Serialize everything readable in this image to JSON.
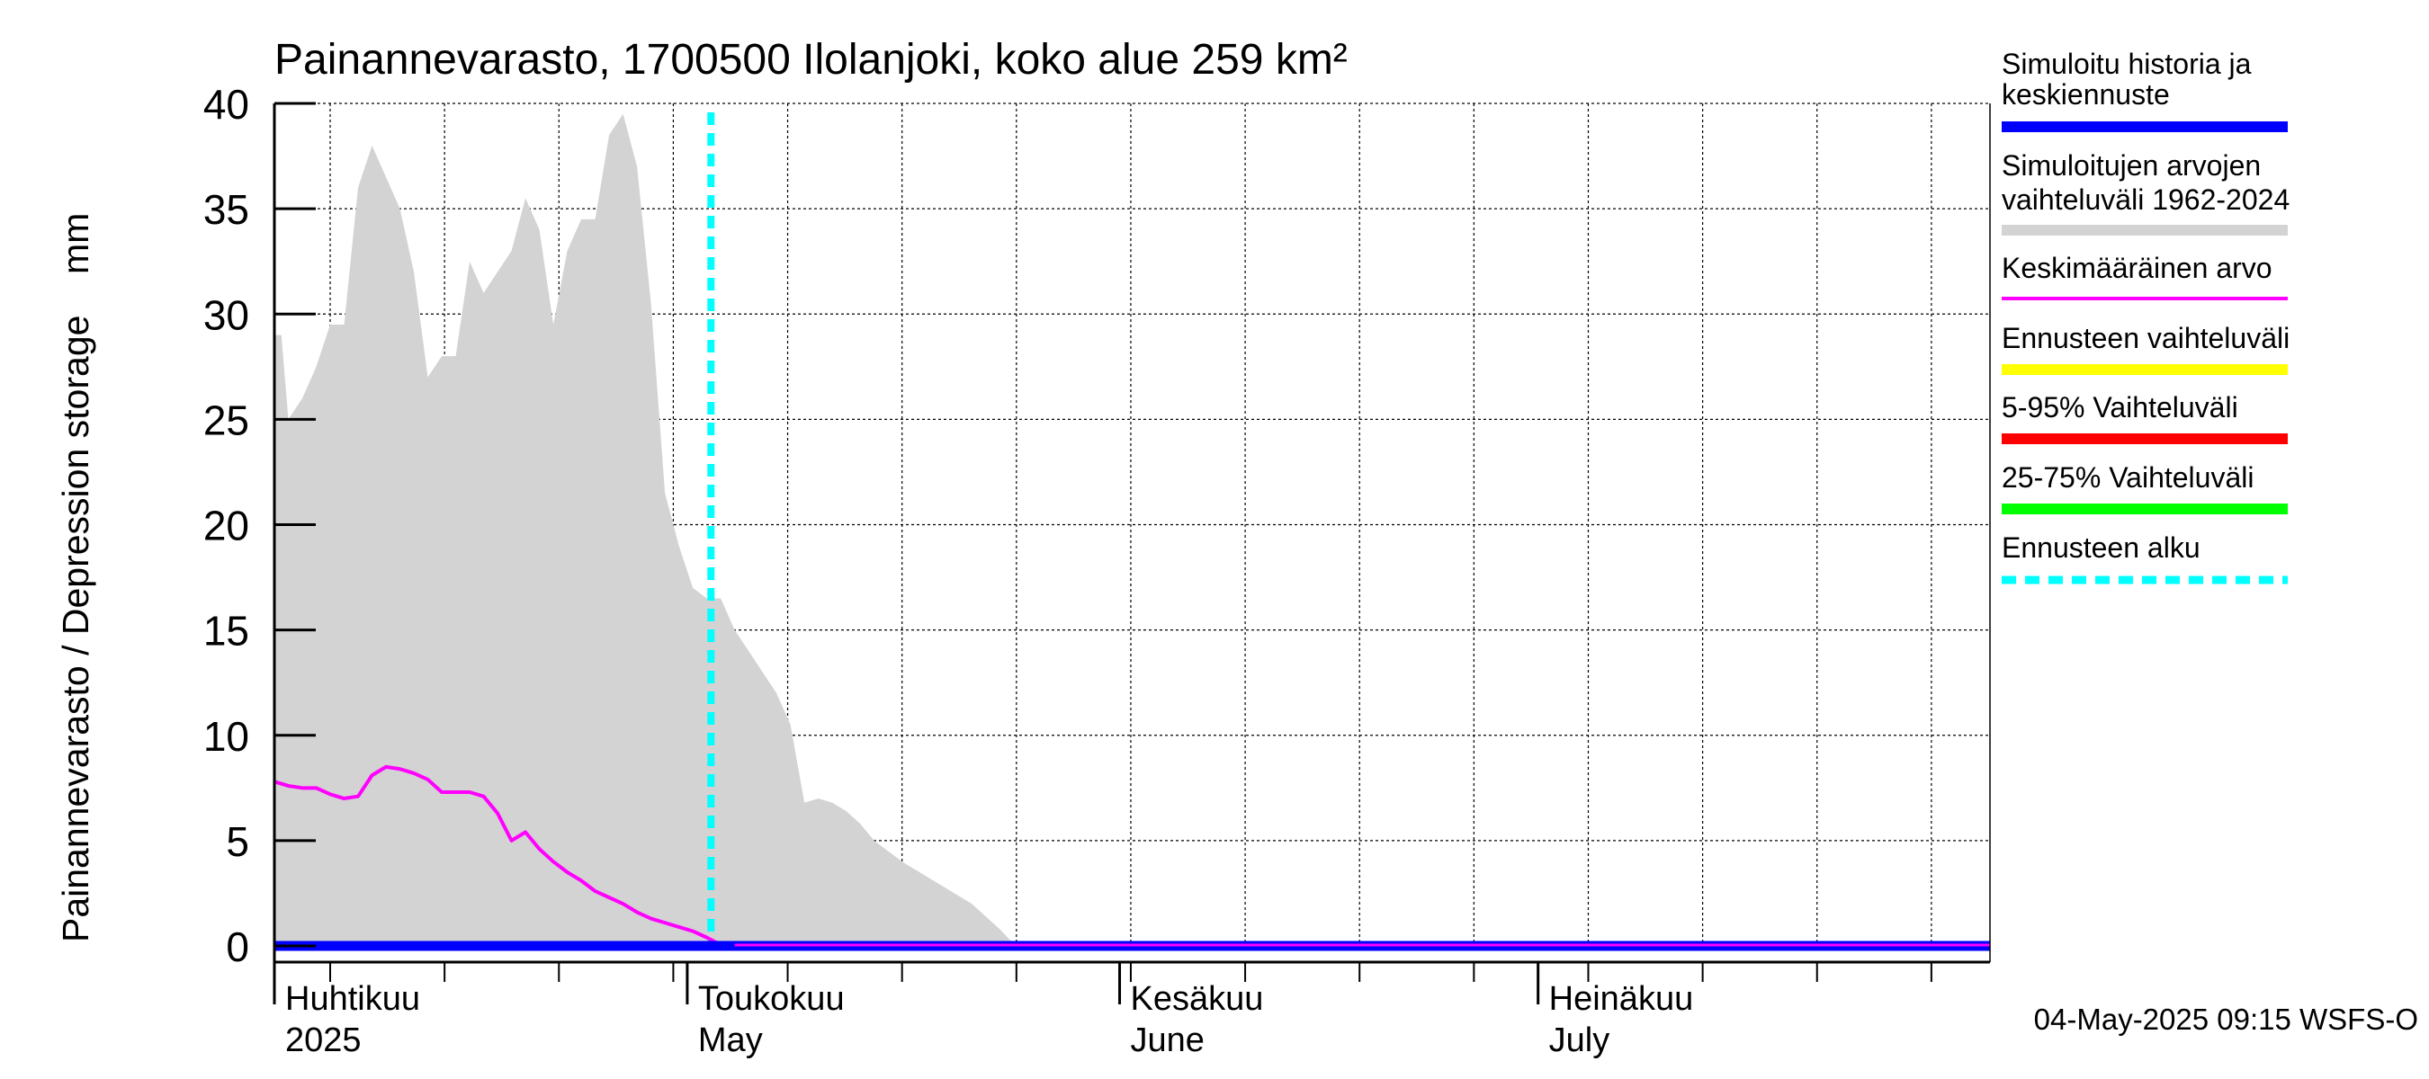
{
  "chart_data": {
    "type": "area",
    "title": "Painannevarasto, 1700500 Ilolanjoki, koko alue 259 km²",
    "ylabel": "Painannevarasto / Depression storage    mm",
    "ylim": [
      0,
      40
    ],
    "yticks": [
      "0",
      "5",
      "10",
      "15",
      "20",
      "25",
      "30",
      "35",
      "40"
    ],
    "xlim_days": [
      0,
      123
    ],
    "x_unit": "days since 2025-03-30",
    "month_labels": [
      {
        "line1": "Huhtikuu",
        "line2": "2025",
        "day": 2
      },
      {
        "line1": "Toukokuu",
        "line2": "May",
        "day": 32
      },
      {
        "line1": "Kesäkuu",
        "line2": "June",
        "day": 63
      },
      {
        "line1": "Heinäkuu",
        "line2": "July",
        "day": 93
      }
    ],
    "forecast_start_day": 31.3,
    "series": [
      {
        "name": "Simuloitujen arvojen vaihteluväli 1962-2024",
        "kind": "band",
        "color": "#d3d3d3",
        "x": [
          0,
          0.5,
          1,
          2,
          3,
          4,
          5,
          6,
          7,
          8,
          9,
          10,
          11,
          12,
          13,
          14,
          15,
          16,
          17,
          18,
          19,
          20,
          21,
          22,
          23,
          24,
          25,
          26,
          27,
          28,
          29,
          30,
          31,
          32,
          33,
          34,
          35,
          36,
          37,
          38,
          39,
          40,
          41,
          42,
          43,
          44,
          45,
          46,
          47,
          48,
          49,
          50,
          51,
          52,
          53,
          54,
          123
        ],
        "values": [
          29,
          29,
          25,
          26,
          27.5,
          29.5,
          29.5,
          36,
          38,
          36.5,
          35,
          32,
          27,
          28,
          28,
          32.5,
          31,
          32,
          33,
          35.5,
          34,
          29.5,
          33,
          34.5,
          34.5,
          38.5,
          39.5,
          37,
          30.5,
          21.5,
          19,
          17,
          16.5,
          16.5,
          15,
          14,
          13,
          12,
          10.5,
          6.8,
          7,
          6.8,
          6.4,
          5.8,
          5,
          4.5,
          4,
          3.6,
          3.2,
          2.8,
          2.4,
          2,
          1.4,
          0.8,
          0.1,
          0,
          0
        ]
      },
      {
        "name": "Keskimääräinen arvo",
        "kind": "line",
        "color": "#ff00ff",
        "x": [
          0,
          1,
          2,
          3,
          4,
          5,
          6,
          7,
          8,
          9,
          10,
          11,
          12,
          13,
          14,
          15,
          16,
          17,
          18,
          19,
          20,
          21,
          22,
          23,
          24,
          25,
          26,
          27,
          28,
          29,
          30,
          31,
          32,
          33,
          123
        ],
        "values": [
          7.8,
          7.6,
          7.5,
          7.5,
          7.2,
          7.0,
          7.1,
          8.1,
          8.5,
          8.4,
          8.2,
          7.9,
          7.3,
          7.3,
          7.3,
          7.1,
          6.3,
          5.0,
          5.4,
          4.6,
          4.0,
          3.5,
          3.1,
          2.6,
          2.3,
          2.0,
          1.6,
          1.3,
          1.1,
          0.9,
          0.7,
          0.4,
          0.05,
          0,
          0
        ]
      },
      {
        "name": "Simuloitu historia ja keskiennuste",
        "kind": "line",
        "color": "#0000ff",
        "x": [
          0,
          123
        ],
        "values": [
          0,
          0
        ]
      }
    ],
    "legend": [
      {
        "label": "Simuloitu historia ja keskiennuste",
        "color": "#0000ff",
        "style": "solid-thick"
      },
      {
        "label": "Simuloitujen arvojen vaihteluväli 1962-2024",
        "color": "#d3d3d3",
        "style": "solid-thick"
      },
      {
        "label": "Keskimääräinen arvo",
        "color": "#ff00ff",
        "style": "solid-thin"
      },
      {
        "label": "Ennusteen vaihteluväli",
        "color": "#ffff00",
        "style": "solid-thick"
      },
      {
        "label": "5-95% Vaihteluväli",
        "color": "#ff0000",
        "style": "solid-thick"
      },
      {
        "label": "25-75% Vaihteluväli",
        "color": "#00ff00",
        "style": "solid-thick"
      },
      {
        "label": "Ennusteen alku",
        "color": "#00ffff",
        "style": "dashed"
      }
    ],
    "footer": "04-May-2025 09:15 WSFS-O"
  }
}
